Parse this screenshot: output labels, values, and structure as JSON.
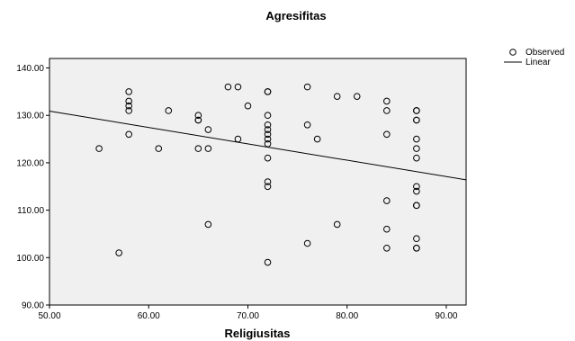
{
  "chart_data": {
    "type": "scatter",
    "title": "Agresifitas",
    "xlabel": "Religiusitas",
    "ylabel": "",
    "xlim": [
      50,
      92
    ],
    "ylim": [
      90,
      142
    ],
    "x_ticks": [
      50,
      60,
      70,
      80,
      90
    ],
    "x_tick_labels": [
      "50.00",
      "60.00",
      "70.00",
      "80.00",
      "90.00"
    ],
    "y_ticks": [
      90,
      100,
      110,
      120,
      130,
      140
    ],
    "y_tick_labels": [
      "90.00",
      "100.00",
      "110.00",
      "120.00",
      "130.00",
      "140.00"
    ],
    "grid": false,
    "plot_background": "#f0f0f0",
    "legend_position": "top-right",
    "series": [
      {
        "name": "Observed",
        "marker": "open-circle",
        "points": [
          [
            55,
            123
          ],
          [
            57,
            101
          ],
          [
            58,
            135
          ],
          [
            58,
            133
          ],
          [
            58,
            132
          ],
          [
            58,
            131
          ],
          [
            58,
            126
          ],
          [
            61,
            123
          ],
          [
            62,
            131
          ],
          [
            65,
            130
          ],
          [
            65,
            129
          ],
          [
            65,
            129
          ],
          [
            65,
            123
          ],
          [
            66,
            127
          ],
          [
            66,
            123
          ],
          [
            66,
            107
          ],
          [
            68,
            136
          ],
          [
            69,
            136
          ],
          [
            69,
            125
          ],
          [
            70,
            132
          ],
          [
            72,
            135
          ],
          [
            72,
            135
          ],
          [
            72,
            130
          ],
          [
            72,
            128
          ],
          [
            72,
            127
          ],
          [
            72,
            126
          ],
          [
            72,
            125
          ],
          [
            72,
            124
          ],
          [
            72,
            121
          ],
          [
            72,
            116
          ],
          [
            72,
            115
          ],
          [
            72,
            99
          ],
          [
            76,
            136
          ],
          [
            76,
            128
          ],
          [
            76,
            103
          ],
          [
            77,
            125
          ],
          [
            79,
            134
          ],
          [
            79,
            107
          ],
          [
            81,
            134
          ],
          [
            84,
            133
          ],
          [
            84,
            131
          ],
          [
            84,
            126
          ],
          [
            84,
            112
          ],
          [
            84,
            106
          ],
          [
            84,
            102
          ],
          [
            87,
            131
          ],
          [
            87,
            131
          ],
          [
            87,
            129
          ],
          [
            87,
            129
          ],
          [
            87,
            125
          ],
          [
            87,
            123
          ],
          [
            87,
            121
          ],
          [
            87,
            115
          ],
          [
            87,
            114
          ],
          [
            87,
            111
          ],
          [
            87,
            111
          ],
          [
            87,
            104
          ],
          [
            87,
            102
          ],
          [
            87,
            102
          ]
        ]
      },
      {
        "name": "Linear",
        "type": "line",
        "points": [
          [
            50,
            130.9
          ],
          [
            92,
            116.4
          ]
        ]
      }
    ]
  }
}
